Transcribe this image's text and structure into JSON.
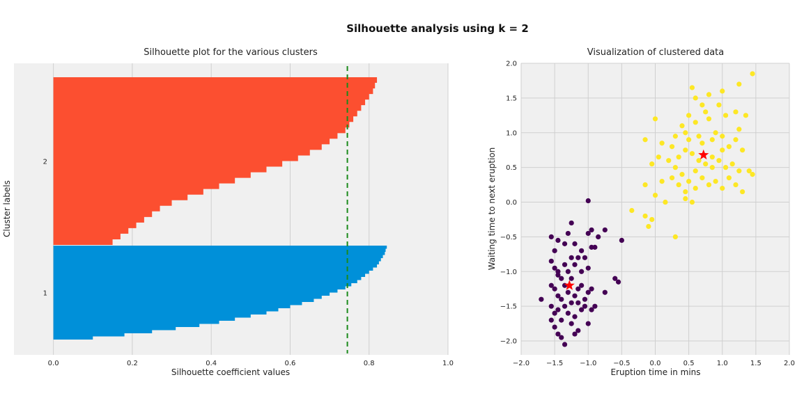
{
  "figure_title": "Silhouette analysis using k = 2",
  "chart_data": [
    {
      "type": "bar",
      "orientation": "horizontal",
      "title": "Silhouette plot for the various clusters",
      "xlabel": "Silhouette coefficient values",
      "ylabel": "Cluster labels",
      "xlim": [
        -0.1,
        1.0
      ],
      "x_ticks": [
        "0.0",
        "0.2",
        "0.4",
        "0.6",
        "0.8",
        "1.0"
      ],
      "y_tick_labels": [
        "2",
        "1"
      ],
      "average_silhouette": 0.745,
      "grid": true,
      "series": [
        {
          "name": "1",
          "color": "#0090d9",
          "sorted_coefficients_min_to_max": [
            0.1,
            0.18,
            0.25,
            0.31,
            0.37,
            0.42,
            0.46,
            0.5,
            0.54,
            0.57,
            0.6,
            0.63,
            0.66,
            0.68,
            0.7,
            0.72,
            0.74,
            0.755,
            0.77,
            0.78,
            0.79,
            0.8,
            0.81,
            0.82,
            0.825,
            0.83,
            0.835,
            0.84,
            0.842,
            0.845
          ]
        },
        {
          "name": "2",
          "color": "#fc4f30",
          "sorted_coefficients_min_to_max": [
            0.15,
            0.17,
            0.19,
            0.21,
            0.23,
            0.25,
            0.27,
            0.3,
            0.34,
            0.38,
            0.42,
            0.46,
            0.5,
            0.54,
            0.58,
            0.62,
            0.65,
            0.68,
            0.7,
            0.72,
            0.74,
            0.75,
            0.76,
            0.77,
            0.78,
            0.79,
            0.8,
            0.81,
            0.815,
            0.82
          ]
        }
      ]
    },
    {
      "type": "scatter",
      "title": "Visualization of clustered data",
      "xlabel": "Eruption time in mins",
      "ylabel": "Waiting time to next eruption",
      "xlim": [
        -2.0,
        2.0
      ],
      "ylim": [
        -2.2,
        2.0
      ],
      "x_ticks": [
        "−2.0",
        "−1.5",
        "−1.0",
        "−0.5",
        "0.0",
        "0.5",
        "1.0",
        "1.5",
        "2.0"
      ],
      "y_ticks": [
        "2.0",
        "1.5",
        "1.0",
        "0.5",
        "0.0",
        "−0.5",
        "−1.0",
        "−1.5",
        "−2.0"
      ],
      "grid": true,
      "series": [
        {
          "name": "0",
          "color": "#440154",
          "points": [
            [
              -1.55,
              -0.5
            ],
            [
              -1.5,
              -0.7
            ],
            [
              -1.45,
              -0.55
            ],
            [
              -1.35,
              -0.6
            ],
            [
              -1.3,
              -0.45
            ],
            [
              -1.25,
              -0.3
            ],
            [
              -1.2,
              -0.6
            ],
            [
              -1.0,
              0.02
            ],
            [
              -0.95,
              -0.4
            ],
            [
              -0.9,
              -0.65
            ],
            [
              -0.85,
              -0.5
            ],
            [
              -0.75,
              -0.4
            ],
            [
              -0.5,
              -0.55
            ],
            [
              -1.0,
              -0.45
            ],
            [
              -1.1,
              -0.7
            ],
            [
              -1.55,
              -0.85
            ],
            [
              -1.5,
              -0.95
            ],
            [
              -1.45,
              -1.05
            ],
            [
              -1.4,
              -1.1
            ],
            [
              -1.35,
              -0.9
            ],
            [
              -1.3,
              -1.0
            ],
            [
              -1.25,
              -0.8
            ],
            [
              -1.2,
              -0.9
            ],
            [
              -1.15,
              -0.8
            ],
            [
              -1.1,
              -1.0
            ],
            [
              -1.05,
              -0.8
            ],
            [
              -1.0,
              -0.95
            ],
            [
              -0.95,
              -0.65
            ],
            [
              -0.6,
              -1.1
            ],
            [
              -0.55,
              -1.15
            ],
            [
              -0.75,
              -1.3
            ],
            [
              -1.5,
              -1.25
            ],
            [
              -1.45,
              -1.35
            ],
            [
              -1.4,
              -1.4
            ],
            [
              -1.35,
              -1.2
            ],
            [
              -1.3,
              -1.3
            ],
            [
              -1.25,
              -1.45
            ],
            [
              -1.2,
              -1.35
            ],
            [
              -1.15,
              -1.25
            ],
            [
              -1.1,
              -1.2
            ],
            [
              -1.05,
              -1.4
            ],
            [
              -1.0,
              -1.3
            ],
            [
              -0.95,
              -1.25
            ],
            [
              -0.9,
              -1.5
            ],
            [
              -0.95,
              -1.55
            ],
            [
              -1.7,
              -1.4
            ],
            [
              -1.55,
              -1.5
            ],
            [
              -1.5,
              -1.6
            ],
            [
              -1.45,
              -1.55
            ],
            [
              -1.4,
              -1.7
            ],
            [
              -1.35,
              -1.5
            ],
            [
              -1.3,
              -1.6
            ],
            [
              -1.25,
              -1.75
            ],
            [
              -1.2,
              -1.65
            ],
            [
              -1.15,
              -1.85
            ],
            [
              -1.1,
              -1.55
            ],
            [
              -1.05,
              -1.5
            ],
            [
              -1.0,
              -1.75
            ],
            [
              -1.5,
              -1.8
            ],
            [
              -1.45,
              -1.9
            ],
            [
              -1.4,
              -1.95
            ],
            [
              -1.35,
              -2.05
            ],
            [
              -1.2,
              -1.9
            ],
            [
              -1.55,
              -1.7
            ],
            [
              -1.55,
              -1.2
            ],
            [
              -1.15,
              -1.45
            ],
            [
              -1.25,
              -1.1
            ],
            [
              -1.45,
              -1.0
            ]
          ]
        },
        {
          "name": "1",
          "color": "#fde725",
          "points": [
            [
              0.55,
              1.65
            ],
            [
              0.8,
              1.55
            ],
            [
              1.25,
              1.7
            ],
            [
              1.45,
              1.85
            ],
            [
              1.0,
              1.6
            ],
            [
              0.6,
              1.5
            ],
            [
              0.7,
              1.4
            ],
            [
              0.75,
              1.3
            ],
            [
              0.95,
              1.4
            ],
            [
              1.2,
              1.3
            ],
            [
              1.05,
              1.25
            ],
            [
              0.4,
              1.1
            ],
            [
              0.5,
              1.25
            ],
            [
              0.6,
              1.15
            ],
            [
              0.8,
              1.2
            ],
            [
              0.9,
              1.0
            ],
            [
              0.65,
              0.95
            ],
            [
              0.3,
              0.95
            ],
            [
              0.45,
              1.0
            ],
            [
              0.0,
              1.2
            ],
            [
              -0.15,
              0.9
            ],
            [
              0.1,
              0.85
            ],
            [
              0.25,
              0.8
            ],
            [
              0.5,
              0.9
            ],
            [
              0.7,
              0.85
            ],
            [
              0.85,
              0.9
            ],
            [
              1.0,
              0.95
            ],
            [
              1.1,
              0.8
            ],
            [
              1.2,
              0.9
            ],
            [
              1.25,
              1.05
            ],
            [
              1.3,
              0.75
            ],
            [
              1.35,
              1.25
            ],
            [
              1.4,
              0.45
            ],
            [
              0.35,
              0.65
            ],
            [
              0.45,
              0.75
            ],
            [
              0.55,
              0.7
            ],
            [
              0.65,
              0.6
            ],
            [
              0.75,
              0.55
            ],
            [
              0.85,
              0.65
            ],
            [
              0.95,
              0.6
            ],
            [
              1.05,
              0.5
            ],
            [
              1.15,
              0.55
            ],
            [
              1.25,
              0.45
            ],
            [
              0.2,
              0.6
            ],
            [
              -0.05,
              0.55
            ],
            [
              0.05,
              0.65
            ],
            [
              0.3,
              0.5
            ],
            [
              0.4,
              0.4
            ],
            [
              0.5,
              0.3
            ],
            [
              0.6,
              0.45
            ],
            [
              0.7,
              0.35
            ],
            [
              0.8,
              0.25
            ],
            [
              0.9,
              0.3
            ],
            [
              1.0,
              0.2
            ],
            [
              1.1,
              0.35
            ],
            [
              1.2,
              0.25
            ],
            [
              1.3,
              0.15
            ],
            [
              1.45,
              0.4
            ],
            [
              0.25,
              0.35
            ],
            [
              0.35,
              0.25
            ],
            [
              0.1,
              0.3
            ],
            [
              0.0,
              0.1
            ],
            [
              -0.15,
              0.25
            ],
            [
              0.45,
              0.05
            ],
            [
              0.55,
              0.0
            ],
            [
              0.15,
              0.0
            ],
            [
              -0.05,
              -0.25
            ],
            [
              -0.1,
              -0.35
            ],
            [
              -0.15,
              -0.2
            ],
            [
              -0.35,
              -0.12
            ],
            [
              0.3,
              -0.5
            ],
            [
              0.45,
              0.15
            ],
            [
              0.85,
              0.5
            ],
            [
              1.0,
              0.75
            ],
            [
              0.6,
              0.2
            ]
          ]
        }
      ],
      "centers": {
        "color": "#ff0000",
        "marker": "star",
        "points": [
          [
            0.72,
            0.68
          ],
          [
            -1.28,
            -1.2
          ]
        ]
      }
    }
  ]
}
